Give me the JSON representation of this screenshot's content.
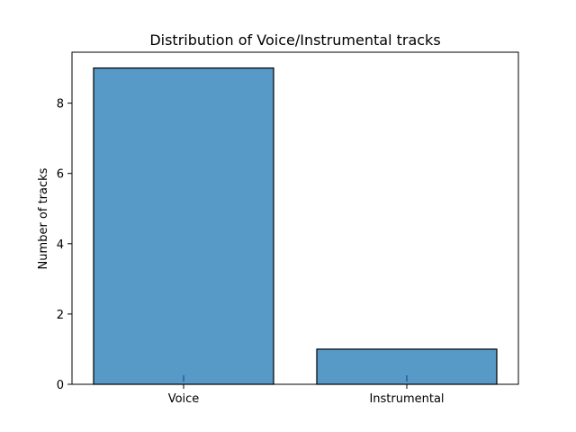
{
  "chart_data": {
    "type": "bar",
    "title": "Distribution of Voice/Instrumental tracks",
    "xlabel": "",
    "ylabel": "Number of tracks",
    "categories": [
      "Voice",
      "Instrumental"
    ],
    "values": [
      9,
      1
    ],
    "ylim": [
      0,
      9.45
    ],
    "yticks": [
      0,
      2,
      4,
      6,
      8
    ],
    "grid": false,
    "legend": "none",
    "colors": {
      "bar_fill": "#5799c7",
      "bar_edge": "#000000",
      "marker": "#2e6fa6",
      "axis": "#000000",
      "background": "#ffffff"
    }
  }
}
